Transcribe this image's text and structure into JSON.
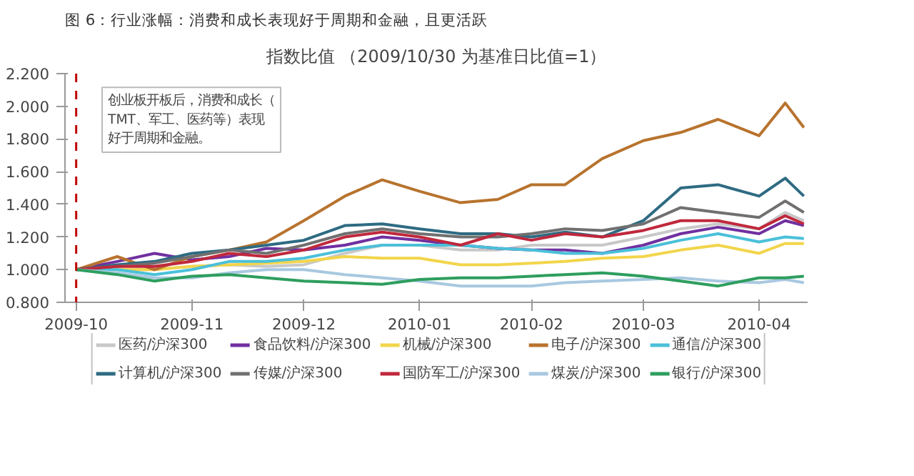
{
  "chart_data": {
    "type": "line",
    "title": "图 6：行业涨幅：消费和成长表现好于周期和金融，且更活跃",
    "subtitle": "指数比值 （2009/10/30 为基准日比值=1）",
    "annotations": [
      "创业板开板后，消费和成长（TMT、军工、医药等）表现好于周期和金融。"
    ],
    "x": [
      "2009-10-30",
      "2009-11-10",
      "2009-11-20",
      "2009-11-30",
      "2009-12-10",
      "2009-12-20",
      "2009-12-30",
      "2010-01-10",
      "2010-01-20",
      "2010-01-30",
      "2010-02-10",
      "2010-02-20",
      "2010-03-01",
      "2010-03-10",
      "2010-03-20",
      "2010-03-31",
      "2010-04-10",
      "2010-04-20",
      "2010-05-01",
      "2010-05-08",
      "2010-05-13"
    ],
    "xlim": [
      "2009-10-27",
      "2010-05-14"
    ],
    "xticks": [
      {
        "value": "2009-10-30",
        "label": "2009-10"
      },
      {
        "value": "2009-11-30",
        "label": "2009-11"
      },
      {
        "value": "2009-12-30",
        "label": "2009-12"
      },
      {
        "value": "2010-01-30",
        "label": "2010-01"
      },
      {
        "value": "2010-03-01",
        "label": "2010-02"
      },
      {
        "value": "2010-03-31",
        "label": "2010-03"
      },
      {
        "value": "2010-05-01",
        "label": "2010-04"
      }
    ],
    "ylim": [
      0.8,
      2.2
    ],
    "yticks": [
      {
        "value": 0.8,
        "label": "0.800"
      },
      {
        "value": 1.0,
        "label": "1.000"
      },
      {
        "value": 1.2,
        "label": "1.200"
      },
      {
        "value": 1.4,
        "label": "1.400"
      },
      {
        "value": 1.6,
        "label": "1.600"
      },
      {
        "value": 1.8,
        "label": "1.800"
      },
      {
        "value": 2.0,
        "label": "2.000"
      },
      {
        "value": 2.2,
        "label": "2.200"
      }
    ],
    "grid": false,
    "legend": "bottom",
    "marker": "none",
    "line_style": "solid",
    "ref_lines": [
      {
        "axis": "x",
        "value": "2009-10-30",
        "label": null,
        "color": "#c00000",
        "line_style": "dashed"
      }
    ],
    "series": [
      {
        "name": "医药/沪深300",
        "color": "#c8c8c8",
        "values": [
          1.0,
          1.0,
          1.0,
          1.02,
          1.03,
          1.02,
          1.03,
          1.1,
          1.15,
          1.15,
          1.12,
          1.12,
          1.15,
          1.15,
          1.15,
          1.2,
          1.25,
          1.28,
          1.25,
          1.35,
          1.3
        ]
      },
      {
        "name": "食品饮料/沪深300",
        "color": "#7030a0",
        "values": [
          1.0,
          1.05,
          1.1,
          1.06,
          1.08,
          1.13,
          1.12,
          1.15,
          1.2,
          1.18,
          1.15,
          1.13,
          1.12,
          1.12,
          1.1,
          1.15,
          1.22,
          1.26,
          1.22,
          1.3,
          1.27
        ]
      },
      {
        "name": "机械/沪深300",
        "color": "#f2d54b",
        "values": [
          1.0,
          1.0,
          1.0,
          1.02,
          1.03,
          1.04,
          1.05,
          1.08,
          1.07,
          1.07,
          1.03,
          1.03,
          1.04,
          1.05,
          1.07,
          1.08,
          1.12,
          1.15,
          1.1,
          1.16,
          1.16
        ]
      },
      {
        "name": "电子/沪深300",
        "color": "#b8732e",
        "values": [
          1.0,
          1.08,
          1.0,
          1.08,
          1.12,
          1.17,
          1.3,
          1.45,
          1.55,
          1.48,
          1.41,
          1.43,
          1.52,
          1.52,
          1.68,
          1.79,
          1.84,
          1.92,
          1.82,
          2.02,
          1.87
        ]
      },
      {
        "name": "通信/沪深300",
        "color": "#4bc0d9",
        "values": [
          1.0,
          1.0,
          0.97,
          1.0,
          1.05,
          1.05,
          1.07,
          1.12,
          1.15,
          1.15,
          1.15,
          1.13,
          1.12,
          1.1,
          1.1,
          1.13,
          1.18,
          1.22,
          1.17,
          1.2,
          1.19
        ]
      },
      {
        "name": "计算机/沪深300",
        "color": "#2e6b82",
        "values": [
          1.0,
          1.03,
          1.05,
          1.1,
          1.12,
          1.15,
          1.18,
          1.27,
          1.28,
          1.25,
          1.22,
          1.22,
          1.2,
          1.23,
          1.2,
          1.3,
          1.5,
          1.52,
          1.45,
          1.56,
          1.45
        ]
      },
      {
        "name": "传媒/沪深300",
        "color": "#707070",
        "values": [
          1.0,
          1.02,
          1.04,
          1.08,
          1.12,
          1.1,
          1.15,
          1.22,
          1.25,
          1.22,
          1.2,
          1.2,
          1.22,
          1.25,
          1.24,
          1.28,
          1.38,
          1.35,
          1.32,
          1.42,
          1.35
        ]
      },
      {
        "name": "国防军工/沪深300",
        "color": "#c0283c",
        "values": [
          1.0,
          1.02,
          1.02,
          1.05,
          1.1,
          1.08,
          1.12,
          1.2,
          1.23,
          1.2,
          1.15,
          1.22,
          1.18,
          1.22,
          1.2,
          1.24,
          1.3,
          1.3,
          1.25,
          1.33,
          1.28
        ]
      },
      {
        "name": "煤炭/沪深300",
        "color": "#a8c8e0",
        "values": [
          1.0,
          0.98,
          0.95,
          0.95,
          0.98,
          1.0,
          1.0,
          0.97,
          0.95,
          0.93,
          0.9,
          0.9,
          0.9,
          0.92,
          0.93,
          0.94,
          0.95,
          0.93,
          0.92,
          0.94,
          0.92
        ]
      },
      {
        "name": "银行/沪深300",
        "color": "#2e9e5e",
        "values": [
          1.0,
          0.97,
          0.93,
          0.96,
          0.97,
          0.95,
          0.93,
          0.92,
          0.91,
          0.94,
          0.95,
          0.95,
          0.96,
          0.97,
          0.98,
          0.96,
          0.93,
          0.9,
          0.95,
          0.95,
          0.96
        ]
      }
    ]
  }
}
